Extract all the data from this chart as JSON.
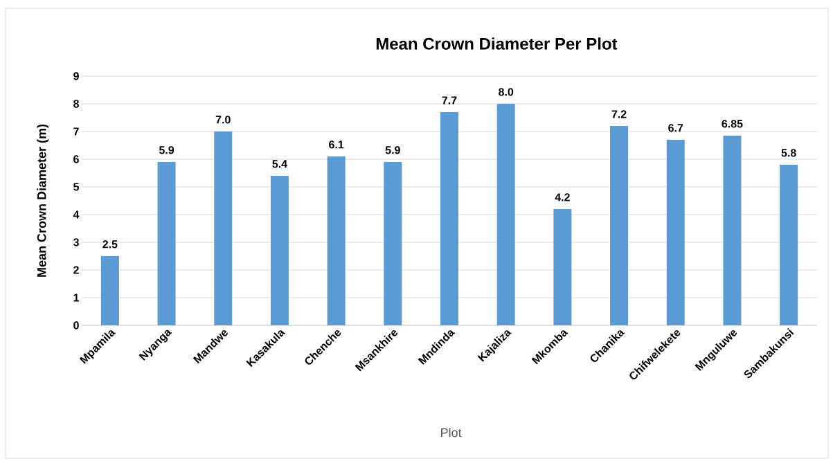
{
  "chart_data": {
    "type": "bar",
    "title": "Mean Crown Diameter Per Plot",
    "xlabel": "Plot",
    "ylabel": "Mean Crown Diameter (m)",
    "categories": [
      "Mpamila",
      "Nyanga",
      "Mandwe",
      "Kasakula",
      "Chenche",
      "Msankhire",
      "Mndinda",
      "Kajaliza",
      "Mkomba",
      "Chanika",
      "Chifwelekete",
      "Mnguluwe",
      "Sambakunsi"
    ],
    "values": [
      2.5,
      5.9,
      7.0,
      5.4,
      6.1,
      5.9,
      7.7,
      8.0,
      4.2,
      7.2,
      6.7,
      6.85,
      5.8
    ],
    "value_labels": [
      "2.5",
      "5.9",
      "7.0",
      "5.4",
      "6.1",
      "5.9",
      "7.7",
      "8.0",
      "4.2",
      "7.2",
      "6.7",
      "6.85",
      "5.8"
    ],
    "color": "#5b9bd5",
    "ylim": [
      0,
      9
    ],
    "yticks": [
      0,
      1,
      2,
      3,
      4,
      5,
      6,
      7,
      8,
      9
    ],
    "grid": "y"
  }
}
